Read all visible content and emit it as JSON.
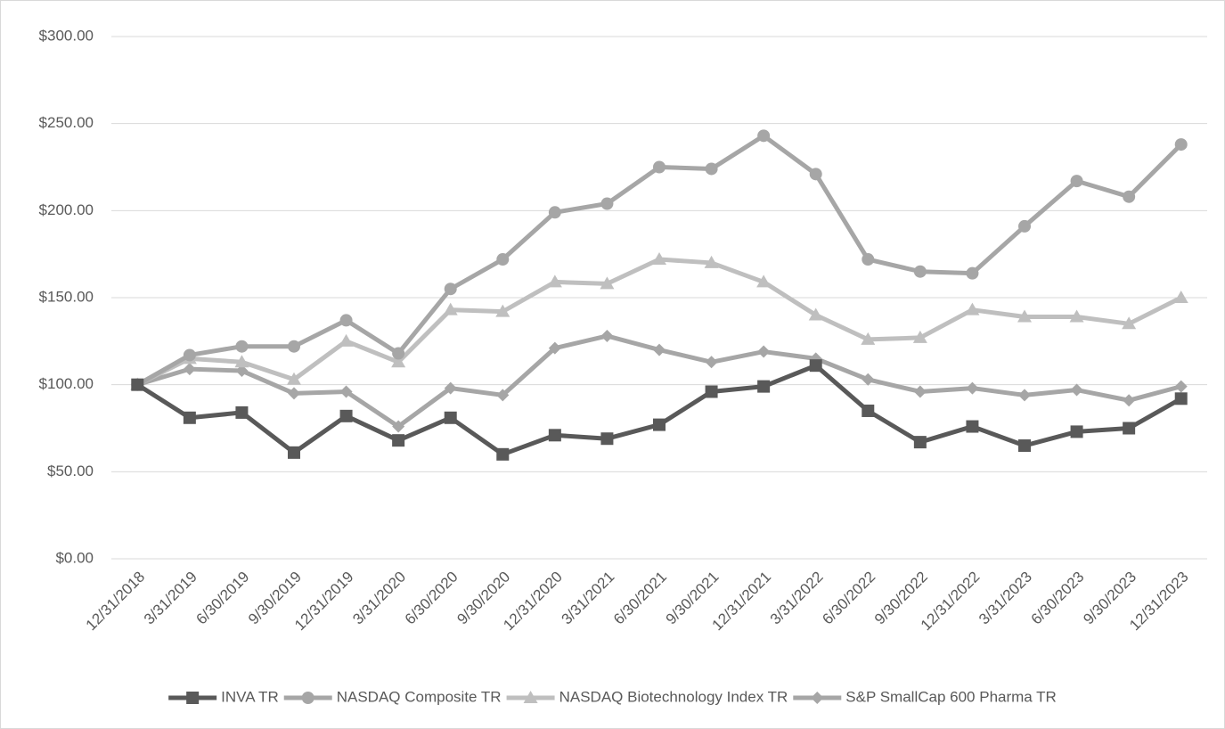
{
  "chart_data": {
    "type": "line",
    "categories": [
      "12/31/2018",
      "3/31/2019",
      "6/30/2019",
      "9/30/2019",
      "12/31/2019",
      "3/31/2020",
      "6/30/2020",
      "9/30/2020",
      "12/31/2020",
      "3/31/2021",
      "6/30/2021",
      "9/30/2021",
      "12/31/2021",
      "3/31/2022",
      "6/30/2022",
      "9/30/2022",
      "12/31/2022",
      "3/31/2023",
      "6/30/2023",
      "9/30/2023",
      "12/31/2023"
    ],
    "series": [
      {
        "name": "INVA TR",
        "color": "#595959",
        "marker": "square",
        "values": [
          100,
          81,
          84,
          61,
          82,
          68,
          81,
          60,
          71,
          69,
          77,
          96,
          99,
          111,
          85,
          67,
          76,
          65,
          73,
          75,
          92
        ]
      },
      {
        "name": "NASDAQ Composite TR",
        "color": "#a6a6a6",
        "marker": "circle",
        "values": [
          100,
          117,
          122,
          122,
          137,
          118,
          155,
          172,
          199,
          204,
          225,
          224,
          243,
          221,
          172,
          165,
          164,
          191,
          217,
          208,
          238
        ]
      },
      {
        "name": "NASDAQ Biotechnology Index TR",
        "color": "#bfbfbf",
        "marker": "triangle",
        "values": [
          100,
          115,
          113,
          103,
          125,
          113,
          143,
          142,
          159,
          158,
          172,
          170,
          159,
          140,
          126,
          127,
          143,
          139,
          139,
          135,
          150
        ]
      },
      {
        "name": "S&P SmallCap 600 Pharma TR",
        "color": "#a6a6a6",
        "marker": "diamond",
        "values": [
          100,
          109,
          108,
          95,
          96,
          76,
          98,
          94,
          121,
          128,
          120,
          113,
          119,
          115,
          103,
          96,
          98,
          94,
          97,
          91,
          99
        ]
      }
    ],
    "ylim": [
      0,
      300
    ],
    "yticks": [
      {
        "value": 0,
        "label": "$0.00"
      },
      {
        "value": 50,
        "label": "$50.00"
      },
      {
        "value": 100,
        "label": "$100.00"
      },
      {
        "value": 150,
        "label": "$150.00"
      },
      {
        "value": 200,
        "label": "$200.00"
      },
      {
        "value": 250,
        "label": "$250.00"
      },
      {
        "value": 300,
        "label": "$300.00"
      }
    ],
    "grid": true,
    "legend": "bottom"
  }
}
